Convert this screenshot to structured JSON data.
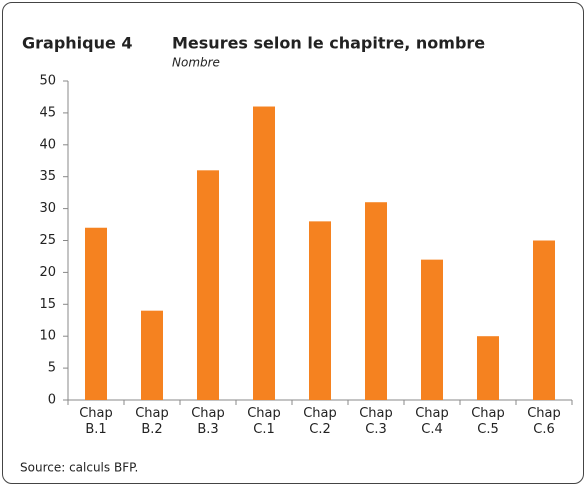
{
  "chart_data": {
    "type": "bar",
    "figure_label": "Graphique 4",
    "title": "Mesures selon le chapitre, nombre",
    "subtitle": "Nombre",
    "source": "Source: calculs BFP.",
    "categories": [
      "Chap B.1",
      "Chap B.2",
      "Chap B.3",
      "Chap C.1",
      "Chap C.2",
      "Chap C.3",
      "Chap C.4",
      "Chap C.5",
      "Chap C.6"
    ],
    "values": [
      27,
      14,
      36,
      46,
      28,
      31,
      22,
      10,
      25
    ],
    "color": "#f58220",
    "ylim": [
      0,
      50
    ],
    "yticks": [
      0,
      5,
      10,
      15,
      20,
      25,
      30,
      35,
      40,
      45,
      50
    ],
    "grid": false
  }
}
